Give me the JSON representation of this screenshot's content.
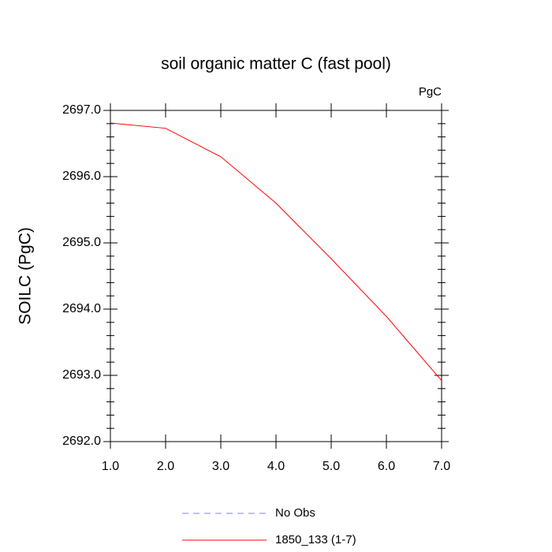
{
  "chart_data": {
    "type": "line",
    "title": "soil organic matter C (fast pool)",
    "units": "PgC",
    "y_label": "SOILC  (PgC)",
    "x": [
      1,
      2,
      3,
      4,
      5,
      6,
      7
    ],
    "series": [
      {
        "name": "No Obs",
        "color": "#8080ff",
        "dashed": true,
        "values": [
          null,
          null,
          null,
          null,
          null,
          null,
          null
        ]
      },
      {
        "name": "1850_133 (1-7)",
        "color": "#ff0000",
        "dashed": false,
        "values": [
          2696.81,
          2696.73,
          2696.3,
          2695.6,
          2694.76,
          2693.89,
          2692.92
        ]
      }
    ],
    "xlim": [
      1,
      7
    ],
    "xticks": [
      {
        "value": 1,
        "label": "1.0"
      },
      {
        "value": 2,
        "label": "2.0"
      },
      {
        "value": 3,
        "label": "3.0"
      },
      {
        "value": 4,
        "label": "4.0"
      },
      {
        "value": 5,
        "label": "5.0"
      },
      {
        "value": 6,
        "label": "6.0"
      },
      {
        "value": 7,
        "label": "7.0"
      }
    ],
    "ylim": [
      2692,
      2697
    ],
    "yticks": [
      {
        "value": 2692,
        "label": "2692.0"
      },
      {
        "value": 2693,
        "label": "2693.0"
      },
      {
        "value": 2694,
        "label": "2694.0"
      },
      {
        "value": 2695,
        "label": "2695.0"
      },
      {
        "value": 2696,
        "label": "2696.0"
      },
      {
        "value": 2697,
        "label": "2697.0"
      }
    ]
  }
}
